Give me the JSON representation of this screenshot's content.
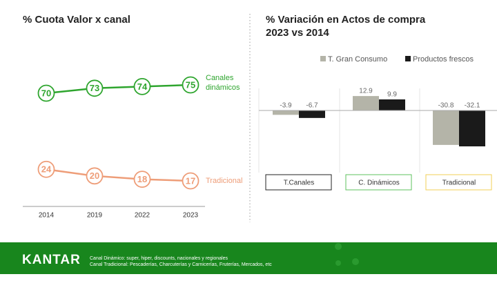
{
  "chart_data": [
    {
      "type": "line",
      "title": "% Cuota Valor x canal",
      "categories": [
        "2014",
        "2019",
        "2022",
        "2023"
      ],
      "series": [
        {
          "name": "Canales dinámicos",
          "color": "#2ea52e",
          "values": [
            70,
            73,
            74,
            75
          ]
        },
        {
          "name": "Tradicional",
          "color": "#ee9d78",
          "values": [
            24,
            20,
            18,
            17
          ]
        }
      ]
    },
    {
      "type": "bar",
      "title": "% Variación en Actos de compra 2023 vs 2014",
      "categories": [
        "T.Canales",
        "C. Dinámicos",
        "Tradicional"
      ],
      "category_colors": [
        "#222222",
        "#5cc05c",
        "#f2cf55"
      ],
      "series": [
        {
          "name": "T. Gran Consumo",
          "color": "#b4b4a8",
          "values": [
            -3.9,
            12.9,
            -30.8
          ]
        },
        {
          "name": "Productos frescos",
          "color": "#1a1a1a",
          "values": [
            -6.7,
            9.9,
            -32.1
          ]
        }
      ]
    }
  ],
  "footer": {
    "logo": "KANTAR",
    "notes": [
      "Canal Dinámico: super, hiper, discounts, nacionales y regionales",
      "Canal Tradicional: Pescaderías, Charcuterías y Carnicerías, Fruterías, Mercados, etc"
    ]
  }
}
